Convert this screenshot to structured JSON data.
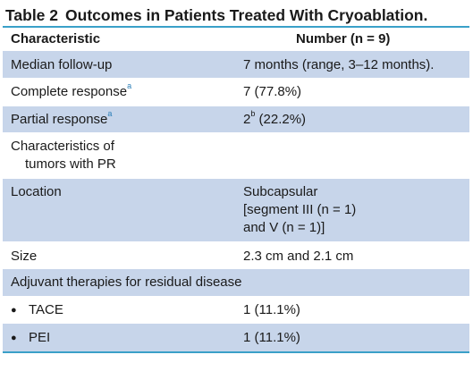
{
  "title": {
    "number": "Table 2",
    "text": "Outcomes in Patients Treated With Cryoablation."
  },
  "header": {
    "col1": "Characteristic",
    "col2": "Number (n = 9)"
  },
  "rows": {
    "followup": {
      "label": "Median follow-up",
      "value": "7 months (range, 3–12 months)."
    },
    "complete": {
      "label": "Complete response",
      "label_sup": "a",
      "value": "7 (77.8%)"
    },
    "partial": {
      "label": "Partial response",
      "label_sup": "a",
      "value_main": "2",
      "value_sup": "b",
      "value_rest": " (22.2%)"
    },
    "characteristics": {
      "line1": "Characteristics of",
      "line2": "tumors with PR"
    },
    "location": {
      "label": "Location",
      "line1": "Subcapsular",
      "line2": "[segment III (n = 1)",
      "line3": "and V (n = 1)]"
    },
    "size": {
      "label": "Size",
      "value": "2.3 cm and 2.1 cm"
    },
    "adjuvant": {
      "label": "Adjuvant therapies for residual disease"
    },
    "tace": {
      "bullet": "●",
      "label": "TACE",
      "value": "1 (11.1%)"
    },
    "pei": {
      "bullet": "●",
      "label": "PEI",
      "value": "1 (11.1%)"
    }
  },
  "colors": {
    "rule": "#3aa0c8",
    "shade": "#c7d5ea",
    "superscript": "#2b7fb8"
  }
}
